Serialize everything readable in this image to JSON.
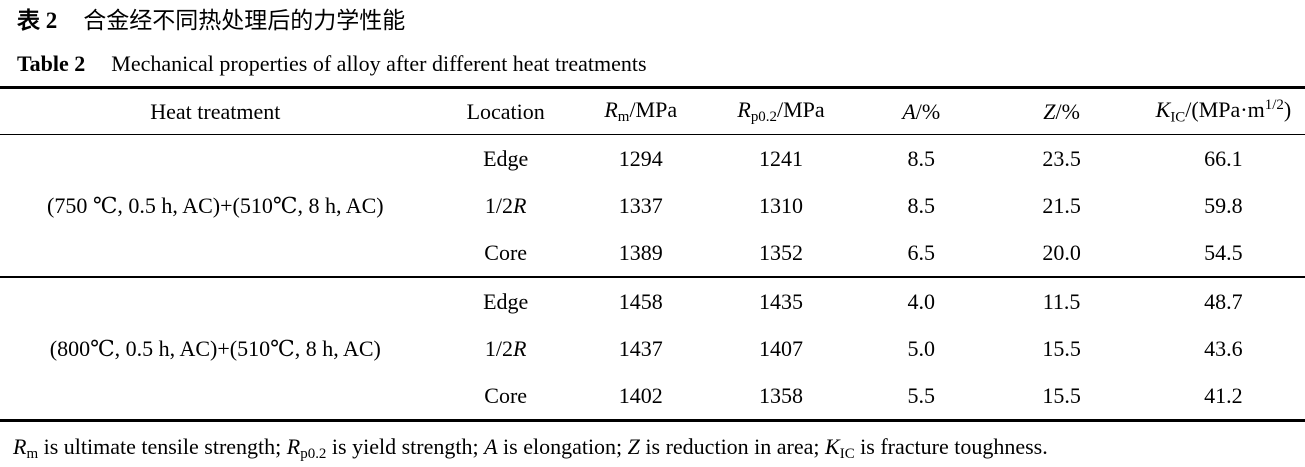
{
  "caption_zh": {
    "label": "表 2",
    "text": "合金经不同热处理后的力学性能"
  },
  "caption_en": {
    "label": "Table 2",
    "text": "Mechanical properties of alloy after different heat treatments"
  },
  "table": {
    "columns": [
      {
        "key": "heat_treatment",
        "label_rich": [
          {
            "t": "Heat treatment"
          }
        ]
      },
      {
        "key": "location",
        "label_rich": [
          {
            "t": "Location"
          }
        ]
      },
      {
        "key": "rm",
        "label_rich": [
          {
            "t": "R",
            "s": "i"
          },
          {
            "t": "m",
            "s": "sub"
          },
          {
            "t": "/MPa"
          }
        ]
      },
      {
        "key": "rp02",
        "label_rich": [
          {
            "t": "R",
            "s": "i"
          },
          {
            "t": "p0.2",
            "s": "sub"
          },
          {
            "t": "/MPa"
          }
        ]
      },
      {
        "key": "a",
        "label_rich": [
          {
            "t": "A",
            "s": "i"
          },
          {
            "t": "/%"
          }
        ]
      },
      {
        "key": "z",
        "label_rich": [
          {
            "t": "Z",
            "s": "i"
          },
          {
            "t": "/%"
          }
        ]
      },
      {
        "key": "kic",
        "label_rich": [
          {
            "t": "K",
            "s": "i"
          },
          {
            "t": "IC",
            "s": "sub"
          },
          {
            "t": "/(MPa·m"
          },
          {
            "t": "1/2",
            "s": "sup"
          },
          {
            "t": ")"
          }
        ]
      }
    ],
    "groups": [
      {
        "heat_treatment": "(750 ℃, 0.5 h, AC)+(510℃, 8 h, AC)",
        "rows": [
          {
            "location_rich": [
              {
                "t": "Edge"
              }
            ],
            "rm": "1294",
            "rp02": "1241",
            "a": "8.5",
            "z": "23.5",
            "kic": "66.1"
          },
          {
            "location_rich": [
              {
                "t": "1/2"
              },
              {
                "t": "R",
                "s": "i"
              }
            ],
            "rm": "1337",
            "rp02": "1310",
            "a": "8.5",
            "z": "21.5",
            "kic": "59.8"
          },
          {
            "location_rich": [
              {
                "t": "Core"
              }
            ],
            "rm": "1389",
            "rp02": "1352",
            "a": "6.5",
            "z": "20.0",
            "kic": "54.5"
          }
        ]
      },
      {
        "heat_treatment": "(800℃, 0.5 h, AC)+(510℃, 8 h, AC)",
        "rows": [
          {
            "location_rich": [
              {
                "t": "Edge"
              }
            ],
            "rm": "1458",
            "rp02": "1435",
            "a": "4.0",
            "z": "11.5",
            "kic": "48.7"
          },
          {
            "location_rich": [
              {
                "t": "1/2"
              },
              {
                "t": "R",
                "s": "i"
              }
            ],
            "rm": "1437",
            "rp02": "1407",
            "a": "5.0",
            "z": "15.5",
            "kic": "43.6"
          },
          {
            "location_rich": [
              {
                "t": "Core"
              }
            ],
            "rm": "1402",
            "rp02": "1358",
            "a": "5.5",
            "z": "15.5",
            "kic": "41.2"
          }
        ]
      }
    ]
  },
  "footnote_rich": [
    {
      "t": "R",
      "s": "i"
    },
    {
      "t": "m",
      "s": "sub"
    },
    {
      "t": " is ultimate tensile strength; "
    },
    {
      "t": "R",
      "s": "i"
    },
    {
      "t": "p0.2",
      "s": "sub"
    },
    {
      "t": " is yield strength; "
    },
    {
      "t": "A",
      "s": "i"
    },
    {
      "t": " is elongation; "
    },
    {
      "t": "Z",
      "s": "i"
    },
    {
      "t": " is reduction in area; "
    },
    {
      "t": "K",
      "s": "i"
    },
    {
      "t": "IC",
      "s": "sub"
    },
    {
      "t": " is fracture toughness."
    }
  ]
}
